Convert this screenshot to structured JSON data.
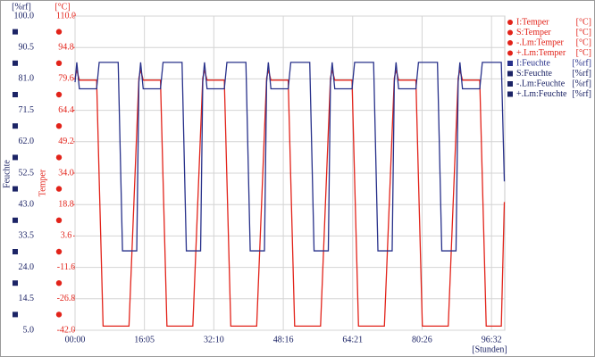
{
  "chart_data": {
    "type": "line",
    "y_unit": "[%rf]",
    "y2_unit": "[°C]",
    "ylabel": "Feuchte",
    "y2label": "Temper",
    "xlabel": "[Stunden]",
    "x": [
      0,
      0.4,
      1,
      5,
      5.6,
      6.5,
      10,
      11,
      12.5,
      14.3,
      14.8,
      15.2,
      15.8,
      19.8,
      20.4,
      21.3,
      24.8,
      25.8,
      27.3,
      29.1,
      29.6,
      30,
      30.6,
      34.6,
      35.2,
      36.1,
      39.6,
      40.6,
      42.1,
      43.9,
      44.4,
      44.8,
      45.4,
      49.4,
      50,
      50.9,
      54.4,
      55.4,
      56.9,
      58.7,
      59.2,
      59.6,
      60.2,
      64.2,
      64.8,
      65.7,
      69.2,
      70.2,
      71.7,
      73.5,
      74,
      74.4,
      75,
      79,
      79.6,
      80.5,
      84,
      85,
      86.5,
      88.3,
      88.8,
      89.2,
      89.8,
      93.8,
      94.4,
      95.3,
      98.8,
      99.5
    ],
    "xlim": [
      0,
      99.6
    ],
    "xticks": [
      {
        "value": 0,
        "label": "00:00"
      },
      {
        "value": 16.083,
        "label": "16:05"
      },
      {
        "value": 32.167,
        "label": "32:10"
      },
      {
        "value": 48.267,
        "label": "48:16"
      },
      {
        "value": 64.35,
        "label": "64:21"
      },
      {
        "value": 80.433,
        "label": "80:26"
      },
      {
        "value": 96.533,
        "label": "96:32"
      }
    ],
    "ylim": [
      5,
      100
    ],
    "yticks": [
      {
        "value": 5,
        "label": "5.0"
      },
      {
        "value": 14.5,
        "label": "14.5"
      },
      {
        "value": 24,
        "label": "24.0"
      },
      {
        "value": 33.5,
        "label": "33.5"
      },
      {
        "value": 43,
        "label": "43.0"
      },
      {
        "value": 52.5,
        "label": "52.5"
      },
      {
        "value": 62,
        "label": "62.0"
      },
      {
        "value": 71.5,
        "label": "71.5"
      },
      {
        "value": 81,
        "label": "81.0"
      },
      {
        "value": 90.5,
        "label": "90.5"
      },
      {
        "value": 100,
        "label": "100.0"
      }
    ],
    "y2lim": [
      -42,
      110
    ],
    "y2ticks": [
      {
        "value": -42,
        "label": "-42.0"
      },
      {
        "value": -26.8,
        "label": "-26.8"
      },
      {
        "value": -11.6,
        "label": "-11.6"
      },
      3.6,
      18.8,
      {
        "value": 34,
        "label": "34.0"
      },
      49.2,
      64.4,
      79.6,
      94.8,
      {
        "value": 110,
        "label": "110.0"
      }
    ],
    "grid": true,
    "legend": "right",
    "series": [
      {
        "name": "I:Temper",
        "unit": "[°C]",
        "color": "#e2231a",
        "axis": "y2",
        "values": [
          80,
          84,
          79,
          79,
          31,
          -40,
          -40,
          -40,
          -40,
          54,
          80,
          84,
          79,
          79,
          31,
          -40,
          -40,
          -40,
          -40,
          54,
          80,
          84,
          79,
          79,
          31,
          -40,
          -40,
          -40,
          -40,
          54,
          80,
          84,
          79,
          79,
          31,
          -40,
          -40,
          -40,
          -40,
          54,
          80,
          84,
          79,
          79,
          31,
          -40,
          -40,
          -40,
          -40,
          54,
          80,
          84,
          79,
          79,
          31,
          -40,
          -40,
          -40,
          -40,
          54,
          80,
          84,
          79,
          79,
          31,
          -40,
          -40,
          20
        ]
      },
      {
        "name": "S:Temper",
        "unit": "[°C]",
        "color": "#e2231a",
        "axis": "y2"
      },
      {
        "name": "-.Lm:Temper",
        "unit": "[°C]",
        "color": "#e2231a",
        "axis": "y2"
      },
      {
        "name": "+.Lm:Temper",
        "unit": "[°C]",
        "color": "#e2231a",
        "axis": "y2"
      },
      {
        "name": "I:Feuchte",
        "unit": "[%rf]",
        "color": "#27308a",
        "values": [
          80,
          86,
          78,
          78,
          86,
          86,
          86,
          29,
          29,
          29,
          80,
          86,
          78,
          78,
          86,
          86,
          86,
          29,
          29,
          29,
          80,
          86,
          78,
          78,
          86,
          86,
          86,
          29,
          29,
          29,
          80,
          86,
          78,
          78,
          86,
          86,
          86,
          29,
          29,
          29,
          80,
          86,
          78,
          78,
          86,
          86,
          86,
          29,
          29,
          29,
          80,
          86,
          78,
          78,
          86,
          86,
          86,
          29,
          29,
          29,
          80,
          86,
          78,
          78,
          86,
          86,
          86,
          50
        ]
      },
      {
        "name": "S:Feuchte",
        "unit": "[%rf]",
        "color": "#1c2466"
      },
      {
        "name": "-.Lm:Feuchte",
        "unit": "[%rf]",
        "color": "#1c2466"
      },
      {
        "name": "+.Lm:Feuchte",
        "unit": "[%rf]",
        "color": "#1c2466"
      }
    ]
  }
}
